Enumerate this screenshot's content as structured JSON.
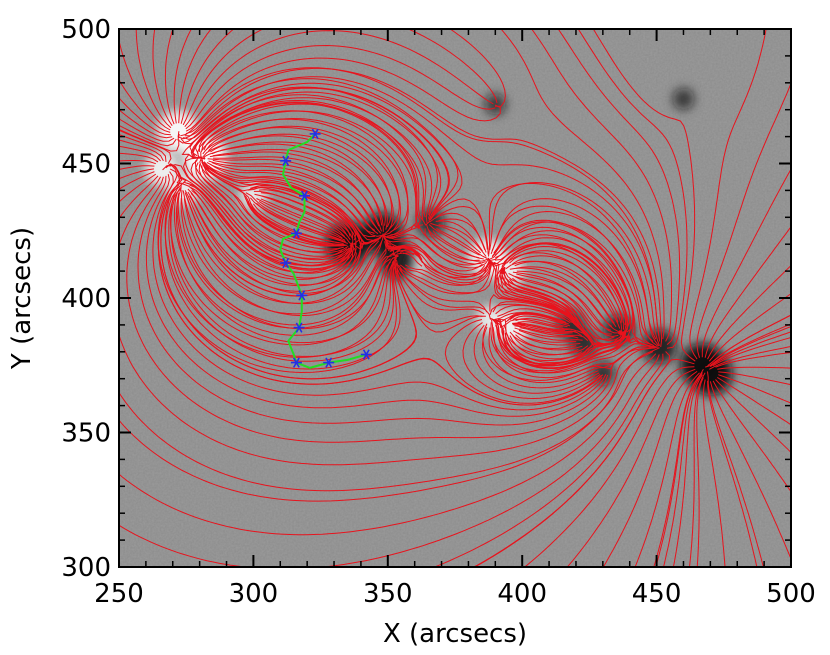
{
  "chart_data": {
    "type": "scatter",
    "title": "",
    "xlabel": "X (arcsecs)",
    "ylabel": "Y (arcsecs)",
    "xlim": [
      250,
      500
    ],
    "ylim": [
      300,
      500
    ],
    "xticks": [
      250,
      300,
      350,
      400,
      450,
      500
    ],
    "yticks": [
      300,
      350,
      400,
      450,
      500
    ],
    "grid": false,
    "background": "grayscale magnetogram",
    "colors": {
      "field_lines": "#e8131d",
      "marker": "#2330e6",
      "path": "#22dd22",
      "frame": "#000000"
    },
    "series": [
      {
        "marker": "asterisk",
        "points": [
          {
            "x": 323,
            "y": 461
          },
          {
            "x": 312,
            "y": 451
          },
          {
            "x": 319,
            "y": 438
          },
          {
            "x": 316,
            "y": 424
          },
          {
            "x": 312,
            "y": 413
          },
          {
            "x": 318,
            "y": 401
          },
          {
            "x": 317,
            "y": 389
          },
          {
            "x": 316,
            "y": 376
          },
          {
            "x": 328,
            "y": 376
          },
          {
            "x": 342,
            "y": 379
          }
        ]
      }
    ],
    "path": [
      {
        "x": 323,
        "y": 461
      },
      {
        "x": 320,
        "y": 458
      },
      {
        "x": 313,
        "y": 455
      },
      {
        "x": 312,
        "y": 451
      },
      {
        "x": 311,
        "y": 446
      },
      {
        "x": 314,
        "y": 441
      },
      {
        "x": 319,
        "y": 438
      },
      {
        "x": 319,
        "y": 432
      },
      {
        "x": 317,
        "y": 428
      },
      {
        "x": 316,
        "y": 424
      },
      {
        "x": 311,
        "y": 422
      },
      {
        "x": 310,
        "y": 418
      },
      {
        "x": 312,
        "y": 413
      },
      {
        "x": 315,
        "y": 409
      },
      {
        "x": 318,
        "y": 401
      },
      {
        "x": 318,
        "y": 395
      },
      {
        "x": 317,
        "y": 389
      },
      {
        "x": 313,
        "y": 384
      },
      {
        "x": 315,
        "y": 379
      },
      {
        "x": 316,
        "y": 376
      },
      {
        "x": 321,
        "y": 374
      },
      {
        "x": 328,
        "y": 376
      },
      {
        "x": 335,
        "y": 377
      },
      {
        "x": 342,
        "y": 379
      }
    ],
    "sources": [
      {
        "x": 272,
        "y": 462,
        "polarity": "positive",
        "strength": 0.9
      },
      {
        "x": 282,
        "y": 452,
        "polarity": "positive",
        "strength": 1.0
      },
      {
        "x": 266,
        "y": 448,
        "polarity": "positive",
        "strength": 0.7
      },
      {
        "x": 274,
        "y": 440,
        "polarity": "positive",
        "strength": 0.6
      },
      {
        "x": 300,
        "y": 438,
        "polarity": "positive",
        "strength": 0.5
      },
      {
        "x": 387,
        "y": 415,
        "polarity": "positive",
        "strength": 0.8
      },
      {
        "x": 395,
        "y": 410,
        "polarity": "positive",
        "strength": 0.6
      },
      {
        "x": 360,
        "y": 413,
        "polarity": "positive",
        "strength": 0.4
      },
      {
        "x": 396,
        "y": 389,
        "polarity": "positive",
        "strength": 0.7
      },
      {
        "x": 388,
        "y": 392,
        "polarity": "positive",
        "strength": 0.5
      },
      {
        "x": 335,
        "y": 420,
        "polarity": "negative",
        "strength": 1.0
      },
      {
        "x": 348,
        "y": 424,
        "polarity": "negative",
        "strength": 0.9
      },
      {
        "x": 354,
        "y": 414,
        "polarity": "negative",
        "strength": 0.8
      },
      {
        "x": 366,
        "y": 428,
        "polarity": "negative",
        "strength": 0.5
      },
      {
        "x": 418,
        "y": 390,
        "polarity": "negative",
        "strength": 0.5
      },
      {
        "x": 436,
        "y": 388,
        "polarity": "negative",
        "strength": 0.6
      },
      {
        "x": 423,
        "y": 383,
        "polarity": "negative",
        "strength": 0.5
      },
      {
        "x": 451,
        "y": 382,
        "polarity": "negative",
        "strength": 0.7
      },
      {
        "x": 467,
        "y": 375,
        "polarity": "negative",
        "strength": 1.0
      },
      {
        "x": 470,
        "y": 372,
        "polarity": "negative",
        "strength": 1.0
      },
      {
        "x": 430,
        "y": 372,
        "polarity": "negative",
        "strength": 0.4
      },
      {
        "x": 390,
        "y": 472,
        "polarity": "negative",
        "strength": 0.3
      },
      {
        "x": 460,
        "y": 474,
        "polarity": "negative",
        "strength": 0.3
      }
    ]
  }
}
